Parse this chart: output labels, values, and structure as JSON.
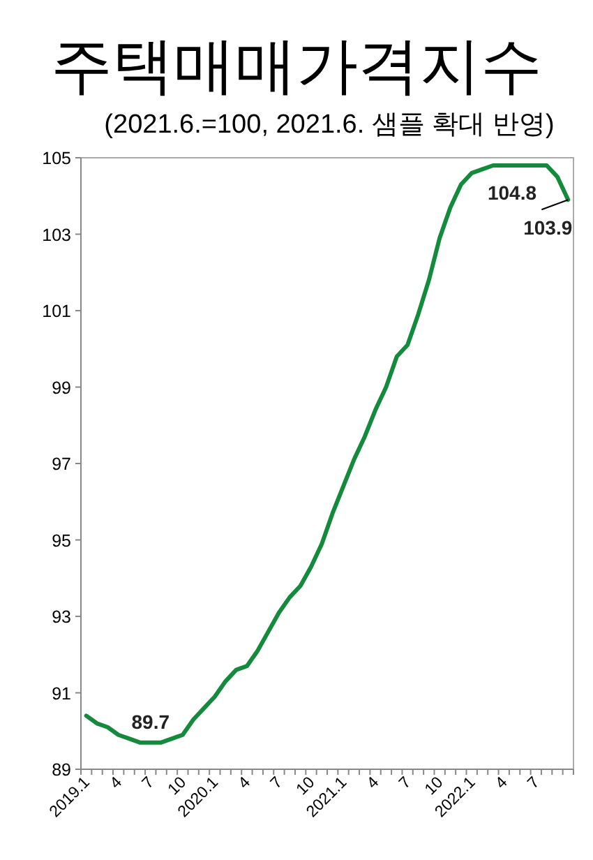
{
  "chart_data": {
    "type": "line",
    "title": "주택매매가격지수",
    "subtitle": "(2021.6.=100, 2021.6. 샘플 확대 반영)",
    "categories": [
      "2019.1",
      null,
      null,
      "4",
      null,
      null,
      "7",
      null,
      null,
      "10",
      null,
      null,
      "2020.1",
      null,
      null,
      "4",
      null,
      null,
      "7",
      null,
      null,
      "10",
      null,
      null,
      "2021.1",
      null,
      null,
      "4",
      null,
      null,
      "7",
      null,
      null,
      "10",
      null,
      null,
      "2022.1",
      null,
      null,
      "4",
      null,
      null,
      "7",
      null,
      null,
      null
    ],
    "series": [
      {
        "color": "#138a3c",
        "values": [
          90.4,
          90.2,
          90.1,
          89.9,
          89.8,
          89.7,
          89.7,
          89.7,
          89.8,
          89.9,
          90.3,
          90.6,
          90.9,
          91.3,
          91.6,
          91.7,
          92.1,
          92.6,
          93.1,
          93.5,
          93.8,
          94.3,
          94.9,
          95.7,
          96.4,
          97.1,
          97.7,
          98.4,
          99.0,
          99.8,
          100.1,
          100.9,
          101.8,
          102.9,
          103.7,
          104.3,
          104.6,
          104.7,
          104.8,
          104.8,
          104.8,
          104.8,
          104.8,
          104.8,
          104.5,
          103.9
        ]
      }
    ],
    "ylim": [
      89,
      105
    ],
    "yticks": [
      89,
      91,
      93,
      95,
      97,
      99,
      101,
      103,
      105
    ],
    "grid": false,
    "marker": "none",
    "line_style": "solid",
    "annotations": [
      {
        "text": "89.7",
        "x": "7",
        "y": 89.7
      },
      "104.8",
      "103.9"
    ]
  }
}
